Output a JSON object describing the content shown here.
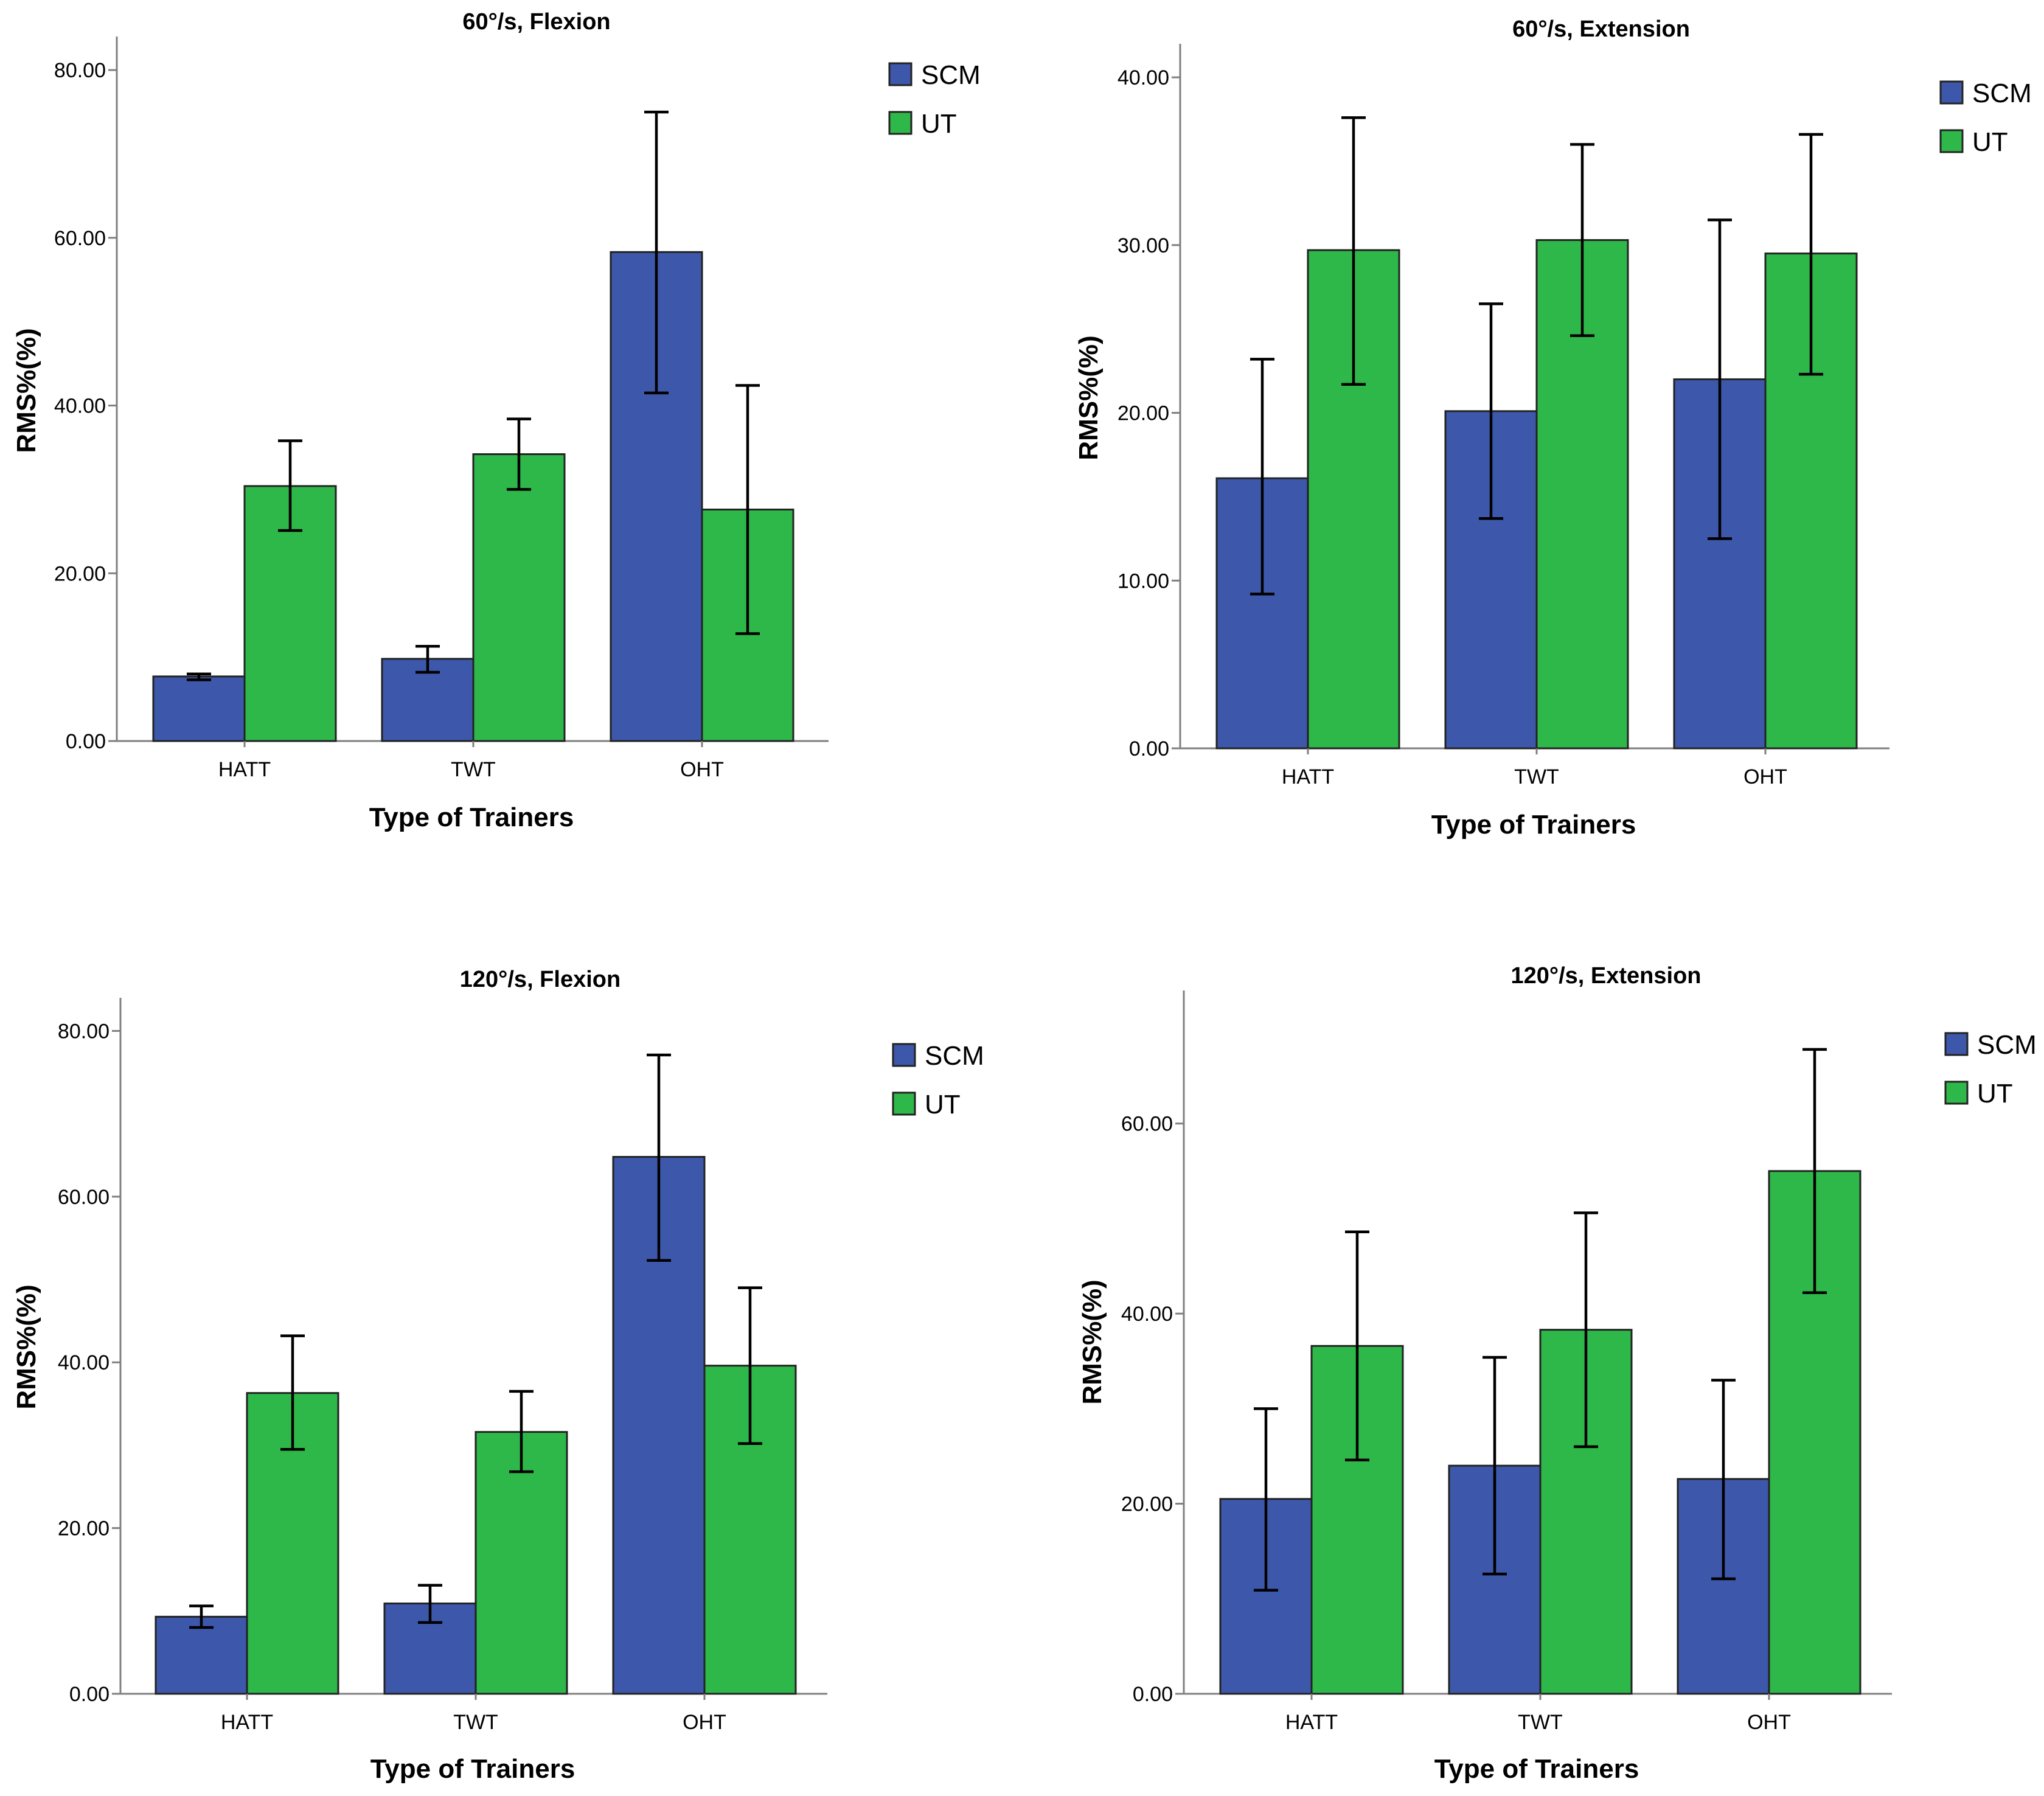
{
  "colors": {
    "SCM": "#3d58ab",
    "UT": "#2fb84a",
    "axis": "#7f7f7f",
    "error": "#000000"
  },
  "chart_data": [
    {
      "type": "bar",
      "title": "60°/s, Flexion",
      "xlabel": "Type of Trainers",
      "ylabel": "RMS%(%)",
      "categories": [
        "HATT",
        "TWT",
        "OHT"
      ],
      "ylim": [
        0,
        84
      ],
      "yticks": [
        0,
        20,
        40,
        60,
        80
      ],
      "ytick_labels": [
        "0.00",
        "20.00",
        "40.00",
        "60.00",
        "80.00"
      ],
      "legend": "top-right",
      "series": [
        {
          "name": "SCM",
          "values": [
            7.7,
            9.8,
            58.3
          ],
          "err_low": [
            7.3,
            8.2,
            41.5
          ],
          "err_high": [
            8.0,
            11.3,
            75.0
          ]
        },
        {
          "name": "UT",
          "values": [
            30.4,
            34.2,
            27.6
          ],
          "err_low": [
            25.1,
            30.0,
            12.8
          ],
          "err_high": [
            35.8,
            38.4,
            42.4
          ]
        }
      ]
    },
    {
      "type": "bar",
      "title": "60°/s, Extension",
      "xlabel": "Type of Trainers",
      "ylabel": "RMS%(%)",
      "categories": [
        "HATT",
        "TWT",
        "OHT"
      ],
      "ylim": [
        0,
        42
      ],
      "yticks": [
        0,
        10,
        20,
        30,
        40
      ],
      "ytick_labels": [
        "0.00",
        "10.00",
        "20.00",
        "30.00",
        "40.00"
      ],
      "legend": "top-right",
      "series": [
        {
          "name": "SCM",
          "values": [
            16.1,
            20.1,
            22.0
          ],
          "err_low": [
            9.2,
            13.7,
            12.5
          ],
          "err_high": [
            23.2,
            26.5,
            31.5
          ]
        },
        {
          "name": "UT",
          "values": [
            29.7,
            30.3,
            29.5
          ],
          "err_low": [
            21.7,
            24.6,
            22.3
          ],
          "err_high": [
            37.6,
            36.0,
            36.6
          ]
        }
      ]
    },
    {
      "type": "bar",
      "title": "120°/s, Flexion",
      "xlabel": "Type of Trainers",
      "ylabel": "RMS%(%)",
      "categories": [
        "HATT",
        "TWT",
        "OHT"
      ],
      "ylim": [
        0,
        84
      ],
      "yticks": [
        0,
        20,
        40,
        60,
        80
      ],
      "ytick_labels": [
        "0.00",
        "20.00",
        "40.00",
        "60.00",
        "80.00"
      ],
      "legend": "top-right",
      "series": [
        {
          "name": "SCM",
          "values": [
            9.3,
            10.9,
            64.8
          ],
          "err_low": [
            8.0,
            8.6,
            52.3
          ],
          "err_high": [
            10.6,
            13.1,
            77.1
          ]
        },
        {
          "name": "UT",
          "values": [
            36.3,
            31.6,
            39.6
          ],
          "err_low": [
            29.5,
            26.8,
            30.2
          ],
          "err_high": [
            43.2,
            36.5,
            49.0
          ]
        }
      ]
    },
    {
      "type": "bar",
      "title": "120°/s, Extension",
      "xlabel": "Type of Trainers",
      "ylabel": "RMS%(%)",
      "categories": [
        "HATT",
        "TWT",
        "OHT"
      ],
      "ylim": [
        0,
        74
      ],
      "yticks": [
        0,
        20,
        40,
        60
      ],
      "ytick_labels": [
        "0.00",
        "20.00",
        "40.00",
        "60.00"
      ],
      "legend": "top-right",
      "series": [
        {
          "name": "SCM",
          "values": [
            20.5,
            24.0,
            22.6
          ],
          "err_low": [
            10.9,
            12.6,
            12.1
          ],
          "err_high": [
            30.0,
            35.4,
            33.0
          ]
        },
        {
          "name": "UT",
          "values": [
            36.6,
            38.3,
            55.0
          ],
          "err_low": [
            24.6,
            26.0,
            42.2
          ],
          "err_high": [
            48.6,
            50.6,
            67.8
          ]
        }
      ]
    }
  ]
}
